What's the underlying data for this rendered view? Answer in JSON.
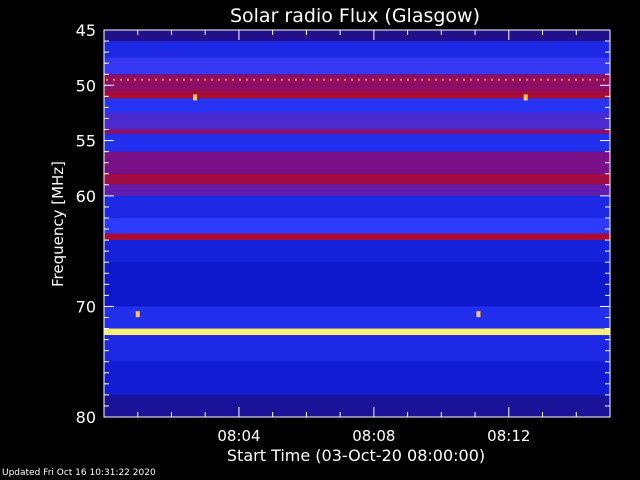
{
  "chart_data": {
    "type": "heatmap",
    "title": "Solar radio Flux (Glasgow)",
    "xlabel": "Start Time (03-Oct-20 08:00:00)",
    "ylabel": "Frequency [MHz]",
    "x_unit": "minutes after 08:00:00",
    "xlim": [
      0,
      15
    ],
    "ylim": [
      45,
      80
    ],
    "x_tick_values": [
      4,
      8,
      12
    ],
    "x_tick_labels": [
      "08:04",
      "08:08",
      "08:12"
    ],
    "y_tick_values": [
      45,
      50,
      55,
      60,
      70,
      80
    ],
    "y_tick_labels": [
      "45",
      "50",
      "55",
      "60",
      "70",
      "80"
    ],
    "colormap": [
      "#2a1070",
      "#0a14c8",
      "#2e3cff",
      "#7a1088",
      "#b80a1a",
      "#ff6a00",
      "#fff07a"
    ],
    "bands": [
      {
        "y0": 45.0,
        "y1": 46.0,
        "level": 0.05
      },
      {
        "y0": 46.0,
        "y1": 47.5,
        "level": 0.25
      },
      {
        "y0": 47.5,
        "y1": 49.0,
        "level": 0.35
      },
      {
        "y0": 49.0,
        "y1": 50.5,
        "level": 0.55
      },
      {
        "y0": 50.5,
        "y1": 51.2,
        "level": 0.62
      },
      {
        "y0": 51.2,
        "y1": 52.5,
        "level": 0.3
      },
      {
        "y0": 52.5,
        "y1": 54.0,
        "level": 0.4
      },
      {
        "y0": 54.0,
        "y1": 54.4,
        "level": 0.55
      },
      {
        "y0": 54.4,
        "y1": 56.0,
        "level": 0.28
      },
      {
        "y0": 56.0,
        "y1": 58.0,
        "level": 0.5
      },
      {
        "y0": 58.0,
        "y1": 59.0,
        "level": 0.6
      },
      {
        "y0": 59.0,
        "y1": 60.0,
        "level": 0.45
      },
      {
        "y0": 60.0,
        "y1": 62.0,
        "level": 0.25
      },
      {
        "y0": 62.0,
        "y1": 63.4,
        "level": 0.33
      },
      {
        "y0": 63.4,
        "y1": 64.0,
        "level": 0.62
      },
      {
        "y0": 64.0,
        "y1": 66.0,
        "level": 0.22
      },
      {
        "y0": 66.0,
        "y1": 70.0,
        "level": 0.18
      },
      {
        "y0": 70.0,
        "y1": 72.0,
        "level": 0.28
      },
      {
        "y0": 72.0,
        "y1": 72.6,
        "level": 1.0
      },
      {
        "y0": 72.6,
        "y1": 75.0,
        "level": 0.25
      },
      {
        "y0": 75.0,
        "y1": 78.0,
        "level": 0.2
      },
      {
        "y0": 78.0,
        "y1": 80.0,
        "level": 0.08
      }
    ],
    "dotted_line": {
      "freq": 49.5,
      "level": 0.85
    },
    "bursts": [
      {
        "t": 2.7,
        "freq": 51.1
      },
      {
        "t": 12.5,
        "freq": 51.1
      },
      {
        "t": 1.0,
        "freq": 70.7
      },
      {
        "t": 11.1,
        "freq": 70.7
      }
    ]
  },
  "footer_text": "Updated Fri Oct 16 10:31:22 2020"
}
